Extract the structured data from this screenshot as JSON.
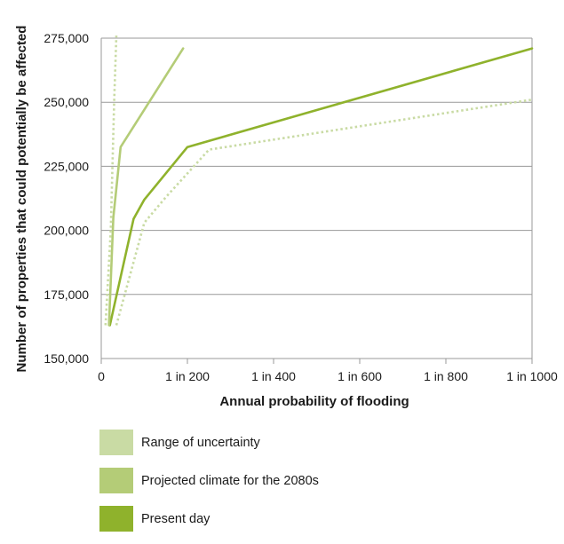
{
  "colors": {
    "uncertainty": "#c9dba4",
    "projected": "#b4cc77",
    "present": "#8fb22c",
    "grid": "#999999"
  },
  "chart_data": {
    "type": "line",
    "xlabel": "Annual probability of flooding",
    "ylabel": "Number of properties that could potentially be affected",
    "x_return_period_range": [
      0,
      1000
    ],
    "ylim": [
      150000,
      275000
    ],
    "x_ticks": [
      {
        "value": 0,
        "label": "0"
      },
      {
        "value": 200,
        "label": "1 in 200"
      },
      {
        "value": 400,
        "label": "1 in 400"
      },
      {
        "value": 600,
        "label": "1 in 600"
      },
      {
        "value": 800,
        "label": "1 in 800"
      },
      {
        "value": 1000,
        "label": "1 in 1000"
      }
    ],
    "y_ticks": [
      {
        "value": 150000,
        "label": "150,000"
      },
      {
        "value": 175000,
        "label": "175,000"
      },
      {
        "value": 200000,
        "label": "200,000"
      },
      {
        "value": 225000,
        "label": "225,000"
      },
      {
        "value": 250000,
        "label": "250,000"
      },
      {
        "value": 275000,
        "label": "275,000"
      }
    ],
    "grid": "horizontal",
    "series": [
      {
        "name": "Present day",
        "style": "solid",
        "color_key": "present",
        "points": [
          [
            20,
            163000
          ],
          [
            75,
            204500
          ],
          [
            100,
            212000
          ],
          [
            200,
            232500
          ],
          [
            1000,
            271000
          ]
        ]
      },
      {
        "name": "Projected climate for the 2080s",
        "style": "solid",
        "color_key": "projected",
        "points": [
          [
            18,
            163000
          ],
          [
            28,
            205000
          ],
          [
            45,
            232500
          ],
          [
            190,
            271000
          ]
        ]
      },
      {
        "name": "Range of uncertainty",
        "style": "dotted",
        "color_key": "uncertainty",
        "points": [
          [
            10,
            163000
          ],
          [
            22,
            200000
          ],
          [
            30,
            251000
          ],
          [
            35,
            276000
          ]
        ]
      },
      {
        "name": "Range of uncertainty",
        "style": "dotted",
        "color_key": "uncertainty",
        "points": [
          [
            35,
            163000
          ],
          [
            100,
            203000
          ],
          [
            150,
            213000
          ],
          [
            250,
            231500
          ],
          [
            1000,
            251000
          ]
        ]
      }
    ],
    "legend_placement": "bottom",
    "legend": [
      {
        "label": "Range of uncertainty",
        "color_key": "uncertainty"
      },
      {
        "label": "Projected climate for the 2080s",
        "color_key": "projected"
      },
      {
        "label": "Present day",
        "color_key": "present"
      }
    ]
  }
}
